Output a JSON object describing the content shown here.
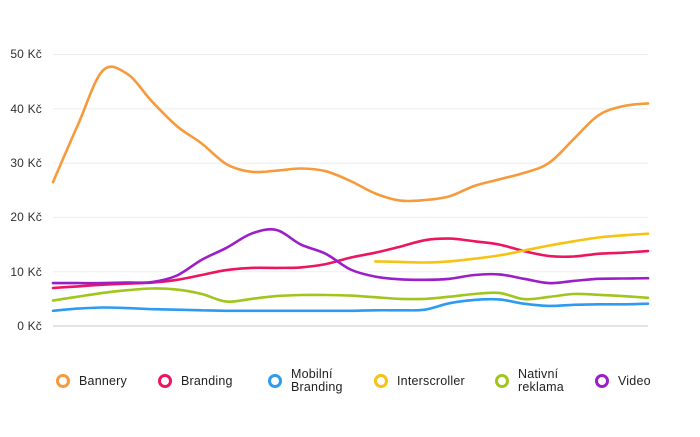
{
  "chart_data": {
    "type": "line",
    "title": "",
    "xlabel": "",
    "ylabel": "Kč",
    "x_axis_labels_visible": false,
    "x": [
      1,
      2,
      3,
      4,
      5,
      6,
      7,
      8,
      9,
      10,
      11,
      12,
      13,
      14,
      15,
      16,
      17,
      18,
      19,
      20,
      21,
      22,
      23,
      24,
      25
    ],
    "y_ticks": [
      "50 Kč",
      "40 Kč",
      "30 Kč",
      "20 Kč",
      "10 Kč",
      "0 Kč"
    ],
    "y_tick_values": [
      50,
      40,
      30,
      20,
      10,
      0
    ],
    "ylim": [
      0,
      55
    ],
    "grid": "horizontal",
    "legend_position": "bottom",
    "series": [
      {
        "id": "bannery",
        "name": "Bannery",
        "color": "#F79A3B",
        "values": [
          26.5,
          37.0,
          47.0,
          46.4,
          41.3,
          36.8,
          33.6,
          29.8,
          28.4,
          28.6,
          29.0,
          28.5,
          26.7,
          24.4,
          23.1,
          23.2,
          23.9,
          25.8,
          27.0,
          28.2,
          30.0,
          34.4,
          38.8,
          40.5,
          41.0
        ]
      },
      {
        "id": "branding",
        "name": "Branding",
        "color": "#EC1561",
        "values": [
          7.0,
          7.3,
          7.6,
          7.8,
          8.0,
          8.5,
          9.4,
          10.3,
          10.7,
          10.7,
          10.8,
          11.4,
          12.6,
          13.5,
          14.6,
          15.8,
          16.1,
          15.6,
          15.0,
          13.8,
          12.9,
          12.8,
          13.3,
          13.5,
          13.8
        ]
      },
      {
        "id": "mobilni-branding",
        "name": "Mobilní Branding",
        "color": "#2D9BF0",
        "values": [
          2.8,
          3.2,
          3.4,
          3.3,
          3.1,
          3.0,
          2.9,
          2.8,
          2.8,
          2.8,
          2.8,
          2.8,
          2.8,
          2.9,
          2.9,
          3.0,
          4.2,
          4.8,
          4.9,
          4.1,
          3.7,
          3.9,
          4.0,
          4.0,
          4.1
        ]
      },
      {
        "id": "interscroller",
        "name": "Interscroller",
        "color": "#F6C214",
        "values": [
          null,
          null,
          null,
          null,
          null,
          null,
          null,
          null,
          null,
          null,
          null,
          null,
          null,
          11.9,
          11.8,
          11.7,
          11.9,
          12.4,
          13.0,
          13.9,
          14.8,
          15.6,
          16.3,
          16.7,
          17.0
        ]
      },
      {
        "id": "nativni-reklama",
        "name": "Nativní reklama",
        "color": "#9FC61C",
        "values": [
          4.7,
          5.4,
          6.1,
          6.6,
          6.9,
          6.7,
          5.9,
          4.5,
          5.0,
          5.5,
          5.7,
          5.7,
          5.6,
          5.3,
          5.0,
          5.0,
          5.4,
          5.9,
          6.1,
          4.95,
          5.35,
          5.9,
          5.75,
          5.5,
          5.2
        ]
      },
      {
        "id": "video",
        "name": "Video",
        "color": "#9C1EC8",
        "values": [
          7.9,
          7.9,
          7.9,
          8.0,
          8.1,
          9.3,
          12.2,
          14.4,
          17.0,
          17.7,
          15.0,
          13.3,
          10.4,
          9.1,
          8.6,
          8.5,
          8.7,
          9.4,
          9.5,
          8.7,
          7.9,
          8.3,
          8.7,
          8.75,
          8.8
        ]
      }
    ]
  },
  "legend": {
    "items": [
      {
        "id": "bannery",
        "label_lines": [
          "Bannery"
        ]
      },
      {
        "id": "branding",
        "label_lines": [
          "Branding"
        ]
      },
      {
        "id": "mobilni-branding",
        "label_lines": [
          "Mobilní",
          "Branding"
        ]
      },
      {
        "id": "interscroller",
        "label_lines": [
          "Interscroller"
        ]
      },
      {
        "id": "nativni-reklama",
        "label_lines": [
          "Nativní",
          "reklama"
        ]
      },
      {
        "id": "video",
        "label_lines": [
          "Video"
        ]
      }
    ]
  }
}
